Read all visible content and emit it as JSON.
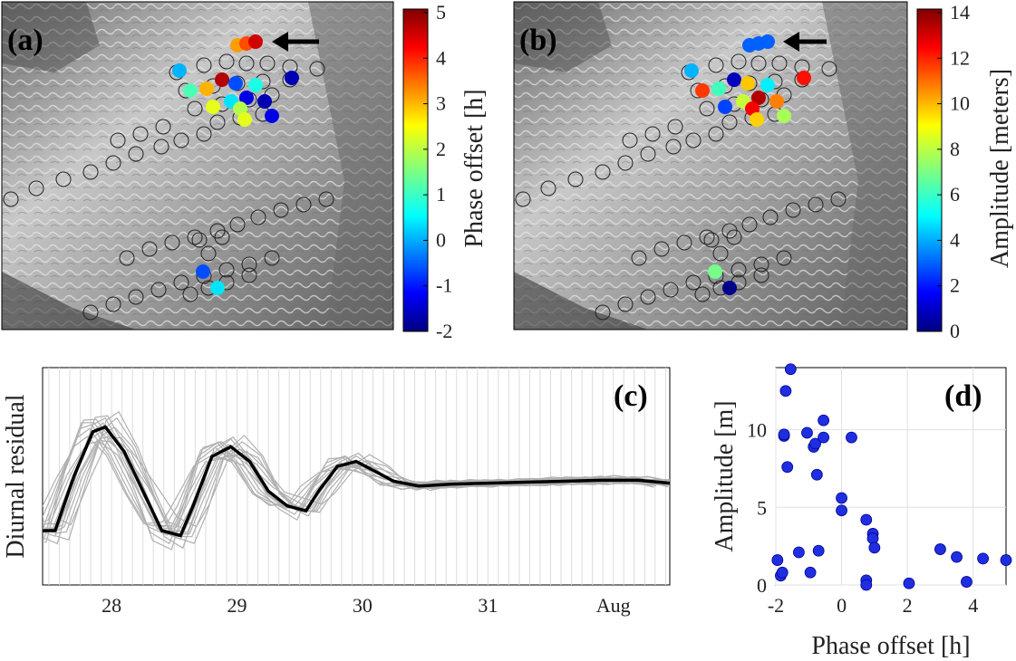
{
  "panels": {
    "a": {
      "label": "(a)"
    },
    "b": {
      "label": "(b)"
    },
    "c": {
      "label": "(c)"
    },
    "d": {
      "label": "(d)"
    }
  },
  "colorbar_a": {
    "label": "Phase offset [h]",
    "ticks": [
      "5",
      "4",
      "3",
      "2",
      "1",
      "0",
      "-1",
      "-2"
    ]
  },
  "colorbar_b": {
    "label": "Amplitude [meters]",
    "ticks": [
      "14",
      "12",
      "10",
      "8",
      "6",
      "4",
      "2",
      "0"
    ]
  },
  "colors": {
    "point_blue": "#1f2ee0",
    "grey_line": "#b0b0b0",
    "mean_line": "#000000",
    "map_grey": "#9a9a9a"
  },
  "chart_data": [
    {
      "type": "line",
      "ylabel": "Diurnal residual",
      "xlabel": "",
      "x_tick_labels": [
        "28",
        "29",
        "30",
        "31",
        "Aug"
      ],
      "x_ticks": [
        28,
        29,
        30,
        31,
        32
      ],
      "xlim": [
        27.45,
        32.45
      ],
      "grid": "vertical",
      "series": [
        {
          "role": "mean",
          "x": [
            27.45,
            27.55,
            27.7,
            27.85,
            27.95,
            28.1,
            28.25,
            28.4,
            28.55,
            28.65,
            28.8,
            28.95,
            29.1,
            29.25,
            29.4,
            29.55,
            29.65,
            29.8,
            29.95,
            30.1,
            30.25,
            30.45,
            30.7,
            31.0,
            31.3,
            31.6,
            31.9,
            32.2,
            32.45
          ],
          "y": [
            -0.05,
            -0.05,
            0.5,
            0.95,
            1.0,
            0.75,
            0.35,
            -0.05,
            -0.1,
            0.2,
            0.7,
            0.8,
            0.65,
            0.35,
            0.2,
            0.15,
            0.35,
            0.6,
            0.65,
            0.55,
            0.45,
            0.4,
            0.42,
            0.43,
            0.44,
            0.45,
            0.46,
            0.46,
            0.43
          ]
        }
      ]
    },
    {
      "type": "scatter",
      "xlabel": "Phase offset [h]",
      "ylabel": "Amplitude [m]",
      "xlim": [
        -2,
        5
      ],
      "ylim": [
        0,
        14
      ],
      "x_tick_labels": [
        "-2",
        "0",
        "2",
        "4"
      ],
      "y_tick_labels": [
        "0",
        "5",
        "10"
      ],
      "grid": true,
      "series": [
        {
          "x": [
            -1.95,
            -1.85,
            -1.75,
            -1.75,
            -1.7,
            -1.65,
            -1.55,
            -1.3,
            -1.05,
            -0.85,
            -0.8,
            -0.75,
            -0.7,
            -0.55,
            -0.55,
            0.0,
            0.0,
            0.3,
            0.75,
            0.75,
            0.75,
            0.95,
            0.95,
            1.0,
            2.05,
            3.0,
            3.5,
            3.8,
            4.3,
            5.0,
            -1.8,
            -0.95
          ],
          "y": [
            1.6,
            0.6,
            9.6,
            9.7,
            12.5,
            7.6,
            13.9,
            2.1,
            9.8,
            8.9,
            9.1,
            7.1,
            2.2,
            10.6,
            9.5,
            5.6,
            4.8,
            9.5,
            4.2,
            0.3,
            0.0,
            3.3,
            3.0,
            2.4,
            0.1,
            2.3,
            1.8,
            0.2,
            1.7,
            1.6,
            0.8,
            0.8
          ]
        }
      ]
    }
  ]
}
